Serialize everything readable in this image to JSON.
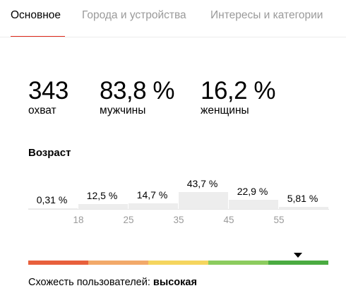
{
  "tabs": [
    {
      "label": "Основное",
      "active": true
    },
    {
      "label": "Города и устройства",
      "active": false
    },
    {
      "label": "Интересы и категории",
      "active": false
    }
  ],
  "stats": [
    {
      "value": "343",
      "label": "охват"
    },
    {
      "value": "83,8 %",
      "label": "мужчины"
    },
    {
      "value": "16,2 %",
      "label": "женщины"
    }
  ],
  "age": {
    "title": "Возраст",
    "bars": [
      {
        "label": "0,31 %",
        "value": 0.31
      },
      {
        "label": "12,5 %",
        "value": 12.5
      },
      {
        "label": "14,7 %",
        "value": 14.7
      },
      {
        "label": "43,7 %",
        "value": 43.7
      },
      {
        "label": "22,9 %",
        "value": 22.9
      },
      {
        "label": "5,81 %",
        "value": 5.81
      }
    ],
    "ticks": [
      "18",
      "25",
      "35",
      "45",
      "55"
    ]
  },
  "similarity": {
    "label": "Схожесть пользователей:",
    "value": "высокая",
    "colors": [
      "#e8603c",
      "#f2a96a",
      "#f5d55e",
      "#8ccc5e",
      "#4aab41"
    ],
    "marker_segment": 5
  },
  "colors": {
    "accent": "#e0281a",
    "bar": "#ededed",
    "muted": "#9a9a9a"
  }
}
